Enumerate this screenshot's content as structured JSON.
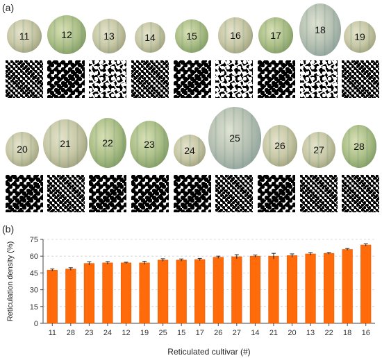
{
  "panels": {
    "a_label": "(a)",
    "b_label": "(b)"
  },
  "melon_row_1": [
    "11",
    "12",
    "13",
    "14",
    "15",
    "16",
    "17",
    "18",
    "19"
  ],
  "melon_row_2": [
    "20",
    "21",
    "22",
    "23",
    "24",
    "25",
    "26",
    "27",
    "28"
  ],
  "colors": {
    "bar": "#ff6a0a",
    "bar_edge": "#e05a00",
    "axis": "#444444",
    "grid": "#cfcfcf"
  },
  "chart_data": {
    "type": "bar",
    "categories": [
      "11",
      "28",
      "23",
      "24",
      "12",
      "19",
      "25",
      "15",
      "17",
      "26",
      "27",
      "14",
      "21",
      "20",
      "13",
      "22",
      "18",
      "16"
    ],
    "values": [
      47.5,
      48.5,
      53.5,
      54.0,
      54.0,
      54.0,
      56.5,
      56.5,
      57.0,
      59.0,
      59.5,
      60.0,
      60.0,
      60.5,
      62.0,
      62.5,
      66.0,
      70.0
    ],
    "errors": [
      1.0,
      1.2,
      1.5,
      1.2,
      0.6,
      1.5,
      1.2,
      1.0,
      1.0,
      1.0,
      1.8,
      1.0,
      2.5,
      1.5,
      1.2,
      0.8,
      0.8,
      1.0
    ],
    "xlabel": "Reticulated cultivar (#)",
    "ylabel": "Reticulation density (%)",
    "ylim": [
      0,
      75
    ],
    "yticks": [
      0,
      15,
      30,
      45,
      60,
      75
    ],
    "grid": "horizontal dashed"
  }
}
